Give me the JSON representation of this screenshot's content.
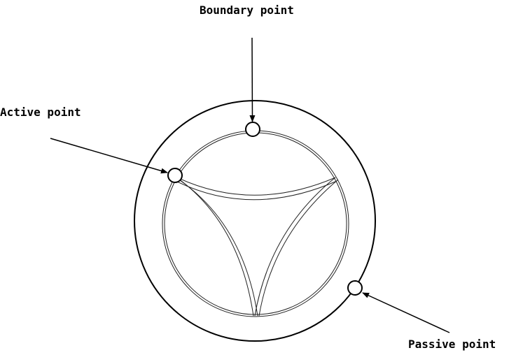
{
  "labels": {
    "boundary": "Boundary point",
    "active": "Active point",
    "passive": "Passive point"
  },
  "colors": {
    "stroke": "#000000",
    "fill": "#ffffff"
  }
}
